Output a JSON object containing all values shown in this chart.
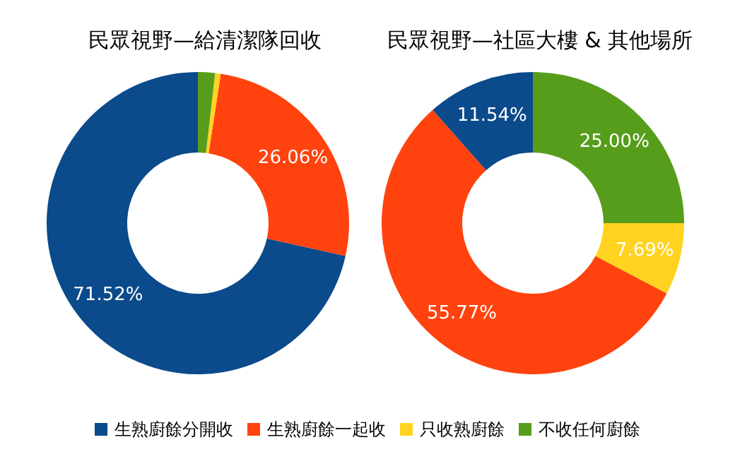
{
  "chart_data": [
    {
      "type": "donut",
      "title": "民眾視野—給清潔隊回收",
      "categories": [
        "生熟廚餘分開收",
        "生熟廚餘一起收",
        "只收熟廚餘",
        "不收任何廚餘"
      ],
      "values": [
        71.52,
        26.06,
        0.6,
        1.82
      ],
      "colors": [
        "#0b4a8b",
        "#ff420e",
        "#ffd320",
        "#579d1c"
      ],
      "value_labels": [
        "71.52%",
        "26.06%",
        null,
        null
      ],
      "legend": "bottom"
    },
    {
      "type": "donut",
      "title": "民眾視野—社區大樓 & 其他場所",
      "categories": [
        null,
        null,
        null,
        null
      ],
      "values": [
        11.54,
        55.77,
        7.69,
        25.0
      ],
      "colors": [
        "#0b4a8b",
        "#ff420e",
        "#ffd320",
        "#579d1c"
      ],
      "value_labels": [
        "11.54%",
        "55.77%",
        "7.69%",
        "25.00%"
      ]
    }
  ]
}
